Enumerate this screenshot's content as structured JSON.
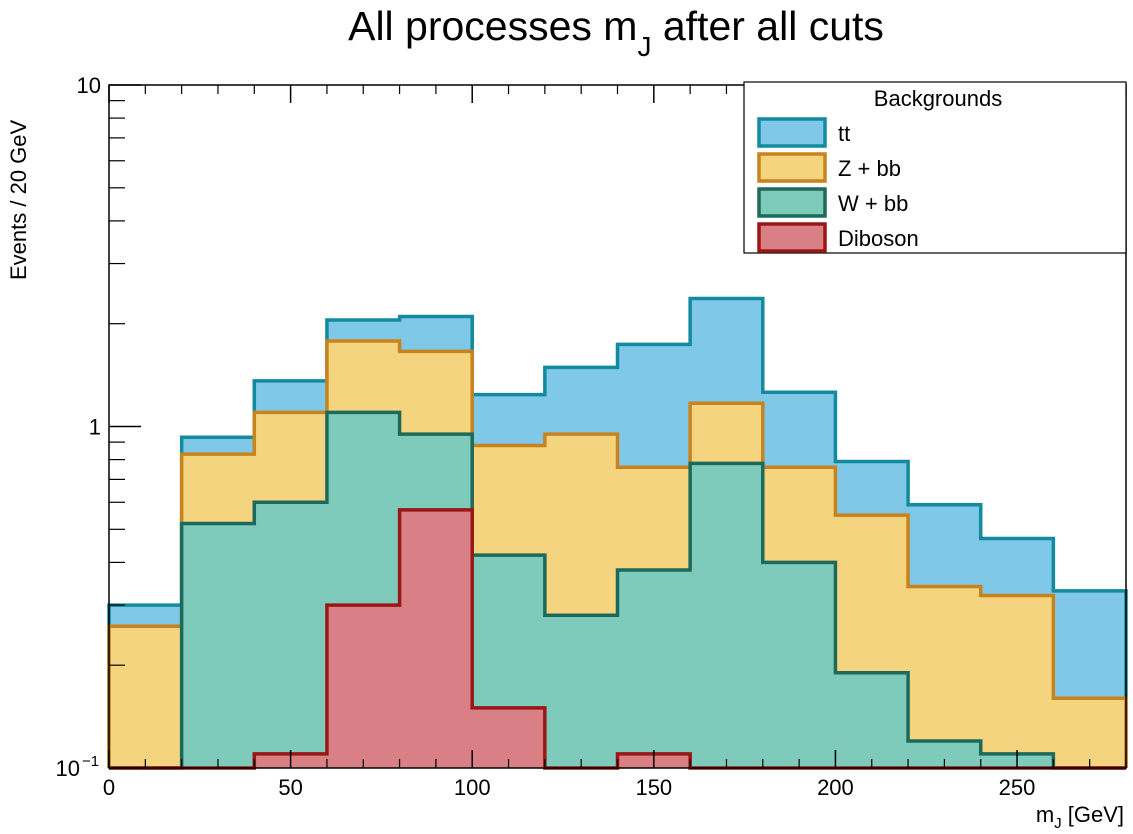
{
  "chart_data": {
    "type": "bar",
    "histogram": "stacked",
    "title_main": "All processes m",
    "title_sub": "J",
    "title_tail": " after all cuts",
    "xlabel_main": "m",
    "xlabel_sub": "J",
    "xlabel_tail": " [GeV]",
    "ylabel": "Events / 20 GeV",
    "xlim": [
      0,
      280
    ],
    "ylim": [
      0.1,
      10
    ],
    "yscale": "log",
    "bin_width": 20,
    "bin_edges": [
      0,
      20,
      40,
      60,
      80,
      100,
      120,
      140,
      160,
      180,
      200,
      220,
      240,
      260,
      280
    ],
    "x_ticks": [
      0,
      50,
      100,
      150,
      200,
      250
    ],
    "y_ticks": [
      {
        "value": 0.1,
        "base": "10",
        "exp": "−1"
      },
      {
        "value": 1,
        "base": "1",
        "exp": ""
      },
      {
        "value": 10,
        "base": "10",
        "exp": ""
      }
    ],
    "legend": {
      "title": "Backgrounds",
      "position": "top-right"
    },
    "series": [
      {
        "name": "tt",
        "fill": "#7fc8e8",
        "line": "#138a9e",
        "cumulative": [
          0.3,
          0.93,
          1.36,
          2.05,
          2.1,
          1.24,
          1.49,
          1.74,
          2.37,
          1.26,
          0.79,
          0.59,
          0.47,
          0.33
        ]
      },
      {
        "name": "Z + bb",
        "fill": "#f4d47e",
        "line": "#c7831e",
        "cumulative": [
          0.26,
          0.83,
          1.1,
          1.78,
          1.66,
          0.88,
          0.95,
          0.76,
          1.17,
          0.76,
          0.55,
          0.34,
          0.32,
          0.16
        ]
      },
      {
        "name": "W + bb",
        "fill": "#7fcbbb",
        "line": "#1e6a5a",
        "cumulative": [
          0.05,
          0.52,
          0.6,
          1.1,
          0.95,
          0.42,
          0.28,
          0.38,
          0.78,
          0.4,
          0.19,
          0.12,
          0.11,
          0.05
        ]
      },
      {
        "name": "Diboson",
        "fill": "#d97f86",
        "line": "#9a1717",
        "cumulative": [
          0.05,
          0.1,
          0.11,
          0.3,
          0.57,
          0.15,
          0.05,
          0.11,
          0.05,
          0.05,
          0.05,
          0.05,
          0.05,
          0.05
        ]
      }
    ]
  }
}
